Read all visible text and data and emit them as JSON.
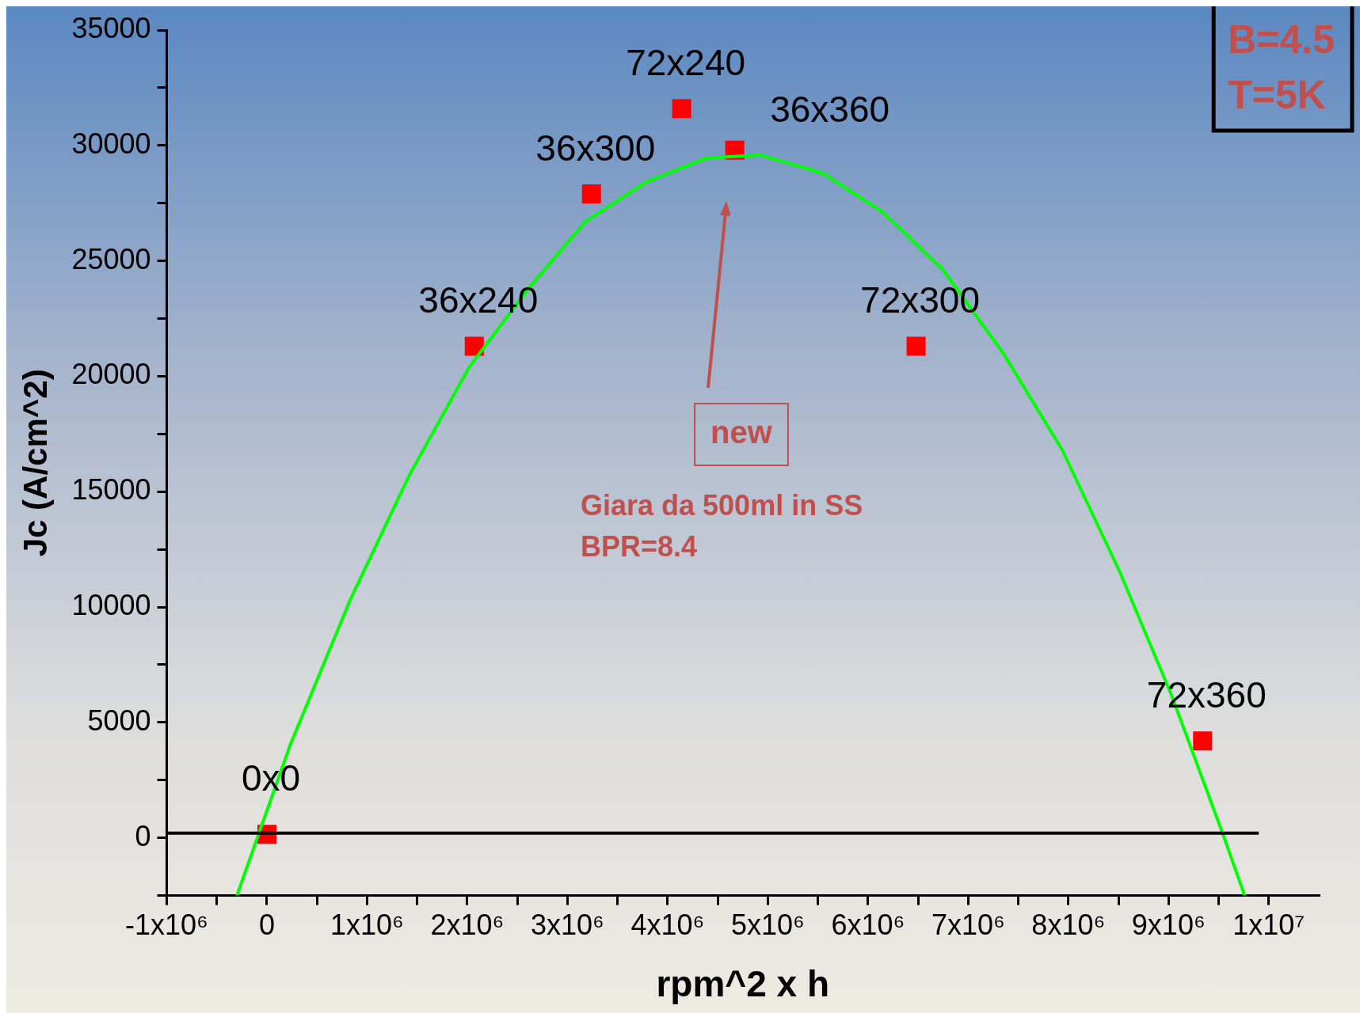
{
  "chart_data": {
    "type": "scatter",
    "xlabel": "rpm^2 x h",
    "ylabel": "Jc (A/cm^2)",
    "xlim": [
      -1000000,
      10500000
    ],
    "ylim": [
      -2500,
      35000
    ],
    "xticks": [
      {
        "value": -1000000,
        "label": "-1x10⁶"
      },
      {
        "value": -500000,
        "label": null
      },
      {
        "value": 0,
        "label": "0"
      },
      {
        "value": 500000,
        "label": null
      },
      {
        "value": 1000000,
        "label": "1x10⁶"
      },
      {
        "value": 1500000,
        "label": null
      },
      {
        "value": 2000000,
        "label": "2x10⁶"
      },
      {
        "value": 2500000,
        "label": null
      },
      {
        "value": 3000000,
        "label": "3x10⁶"
      },
      {
        "value": 3500000,
        "label": null
      },
      {
        "value": 4000000,
        "label": "4x10⁶"
      },
      {
        "value": 4500000,
        "label": null
      },
      {
        "value": 5000000,
        "label": "5x10⁶"
      },
      {
        "value": 5500000,
        "label": null
      },
      {
        "value": 6000000,
        "label": "6x10⁶"
      },
      {
        "value": 6500000,
        "label": null
      },
      {
        "value": 7000000,
        "label": "7x10⁶"
      },
      {
        "value": 7500000,
        "label": null
      },
      {
        "value": 8000000,
        "label": "8x10⁶"
      },
      {
        "value": 8500000,
        "label": null
      },
      {
        "value": 9000000,
        "label": "9x10⁶"
      },
      {
        "value": 9500000,
        "label": null
      },
      {
        "value": 10000000,
        "label": "1x10⁷"
      }
    ],
    "yticks": [
      {
        "value": -2500,
        "label": null
      },
      0,
      {
        "value": 2500,
        "label": null
      },
      5000,
      {
        "value": 7500,
        "label": null
      },
      10000,
      {
        "value": 12500,
        "label": null
      },
      15000,
      {
        "value": 17500,
        "label": null
      },
      20000,
      {
        "value": 22500,
        "label": null
      },
      25000,
      {
        "value": 27500,
        "label": null
      },
      30000,
      {
        "value": 32500,
        "label": null
      },
      35000
    ],
    "series": [
      {
        "color": "#ff0000",
        "marker": "square",
        "x": [
          0,
          2070000,
          3240000,
          4140000,
          4670000,
          6480000,
          9340000
        ],
        "values": [
          150,
          21300,
          27900,
          31600,
          29800,
          21300,
          4200
        ]
      },
      {
        "type": "line",
        "color": "#00ff00",
        "marker": "none",
        "x": [
          -300000,
          230000,
          830000,
          1420000,
          2020000,
          2620000,
          3180000,
          3780000,
          4390000,
          4930000,
          5550000,
          6150000,
          6750000,
          7350000,
          7940000,
          8510000,
          9030000,
          9540000,
          9760000
        ],
        "values": [
          -2500,
          4000,
          10300,
          15700,
          20400,
          23850,
          26700,
          28400,
          29460,
          29580,
          28800,
          27100,
          24600,
          21000,
          16800,
          11560,
          6180,
          190,
          -2500
        ]
      }
    ],
    "ref_lines": [
      {
        "axis": "y",
        "value": 200,
        "color": "#000000"
      }
    ],
    "annotations": [
      {
        "text": "0x0",
        "x": 0,
        "y": 150
      },
      {
        "text": "36x240",
        "x": 2070000,
        "y": 21300
      },
      {
        "text": "36x300",
        "x": 3240000,
        "y": 27900
      },
      {
        "text": "72x240",
        "x": 4140000,
        "y": 31600
      },
      {
        "text": "36x360",
        "x": 4670000,
        "y": 29800
      },
      {
        "text": "72x300",
        "x": 6480000,
        "y": 21300
      },
      {
        "text": "72x360",
        "x": 9340000,
        "y": 4200
      },
      "new",
      "Giara da 500ml in SS\nBPR=8.4",
      "B=4.5\nT=5K"
    ]
  }
}
